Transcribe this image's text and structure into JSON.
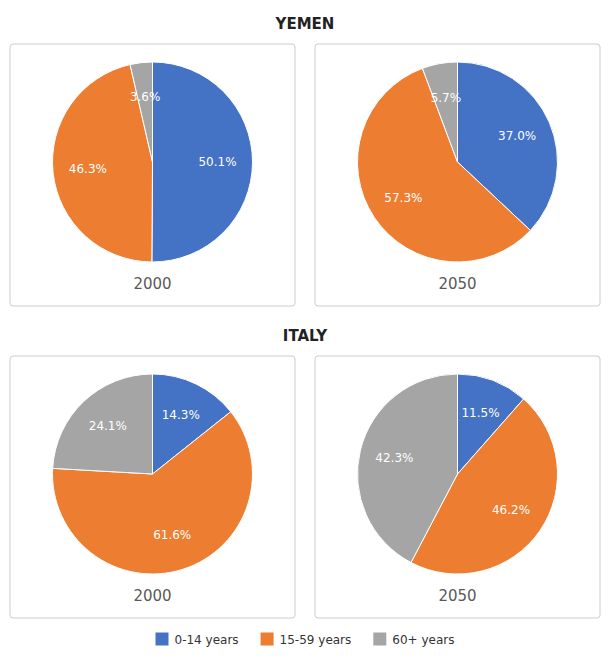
{
  "chart_data": [
    {
      "type": "pie",
      "title": "YEMEN",
      "subtitle": "2000",
      "categories": [
        "0-14 years",
        "15-59 years",
        "60+ years"
      ],
      "values": [
        50.1,
        46.3,
        3.6
      ],
      "value_labels": [
        "50.1%",
        "46.3%",
        "3.6%"
      ],
      "colors": [
        "#4472C4",
        "#ED7D31",
        "#A5A5A5"
      ],
      "data_labels": true,
      "legend": "bottom"
    },
    {
      "type": "pie",
      "subtitle": "2050",
      "values": [
        37.0,
        57.3,
        5.7
      ],
      "value_labels": [
        "37.0%",
        "57.3%",
        "5.7%"
      ],
      "colors": [
        "#4472C4",
        "#ED7D31",
        "#A5A5A5"
      ],
      "data_labels": true
    },
    {
      "type": "pie",
      "title": "ITALY",
      "subtitle": "2000",
      "values": [
        14.3,
        61.6,
        24.1
      ],
      "value_labels": [
        "14.3%",
        "61.6%",
        "24.1%"
      ],
      "colors": [
        "#4472C4",
        "#ED7D31",
        "#A5A5A5"
      ],
      "data_labels": true
    },
    {
      "type": "pie",
      "subtitle": "2050",
      "values": [
        11.5,
        46.2,
        42.3
      ],
      "value_labels": [
        "11.5%",
        "46.2%",
        "42.3%"
      ],
      "colors": [
        "#4472C4",
        "#ED7D31",
        "#A5A5A5"
      ],
      "data_labels": true
    }
  ]
}
